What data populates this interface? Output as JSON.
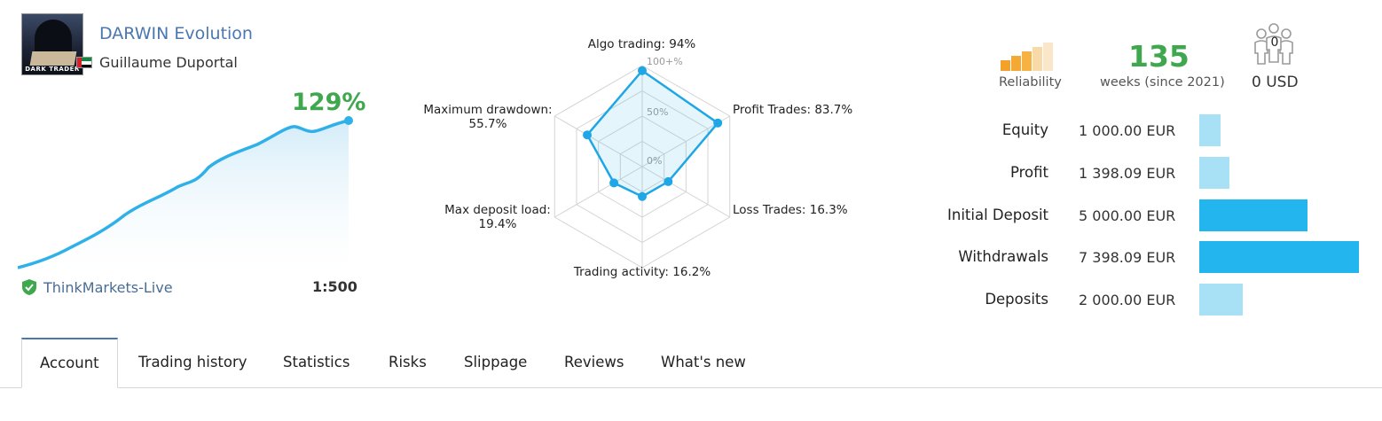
{
  "header": {
    "title": "DARWIN Evolution",
    "author": "Guillaume Duportal",
    "avatar_caption": "DARK TRADER",
    "flag": "UAE"
  },
  "growth": {
    "value": "129%",
    "color": "#3fa84e",
    "line_color": "#2eb0e8"
  },
  "broker": {
    "name": "ThinkMarkets-Live",
    "verified_icon": "green-shield-check-icon",
    "leverage": "1:500"
  },
  "chart_data": {
    "type": "radar",
    "scale_labels": [
      "100+%",
      "50%",
      "0%"
    ],
    "axes": [
      {
        "label": "Algo trading: 94%",
        "value": 94
      },
      {
        "label": "Profit Trades: 83.7%",
        "value": 83.7
      },
      {
        "label": "Loss Trades: 16.3%",
        "value": 16.3
      },
      {
        "label": "Trading activity: 16.2%",
        "value": 16.2
      },
      {
        "label": "Max deposit load: 19.4%",
        "value": 19.4
      },
      {
        "label": "Maximum drawdown: 55.7%",
        "value": 55.7
      }
    ],
    "axis_labels": {
      "algo": "Algo trading: 94%",
      "profit": "Profit Trades: 83.7%",
      "loss": "Loss Trades: 16.3%",
      "activity": "Trading activity: 16.2%",
      "deposit_load_1": "Max deposit load:",
      "deposit_load_2": "19.4%",
      "drawdown_1": "Maximum drawdown:",
      "drawdown_2": "55.7%"
    }
  },
  "stats": {
    "reliability_label": "Reliability",
    "reliability_level": 3,
    "reliability_max": 5,
    "weeks": "135",
    "weeks_label": "weeks (since 2021)",
    "subscribers": "0",
    "subscribers_funds": "0 USD"
  },
  "financials": [
    {
      "label": "Equity",
      "value": "1 000.00 EUR",
      "amount": 1000.0
    },
    {
      "label": "Profit",
      "value": "1 398.09 EUR",
      "amount": 1398.09
    },
    {
      "label": "Initial Deposit",
      "value": "5 000.00 EUR",
      "amount": 5000.0
    },
    {
      "label": "Withdrawals",
      "value": "7 398.09 EUR",
      "amount": 7398.09
    },
    {
      "label": "Deposits",
      "value": "2 000.00 EUR",
      "amount": 2000.0
    }
  ],
  "tabs": [
    {
      "label": "Account",
      "active": true
    },
    {
      "label": "Trading history"
    },
    {
      "label": "Statistics"
    },
    {
      "label": "Risks"
    },
    {
      "label": "Slippage"
    },
    {
      "label": "Reviews"
    },
    {
      "label": "What's new"
    }
  ],
  "colors": {
    "accent": "#4a77b0",
    "bar_strong": "#22b5ee",
    "bar_light": "#a8e0f6"
  }
}
